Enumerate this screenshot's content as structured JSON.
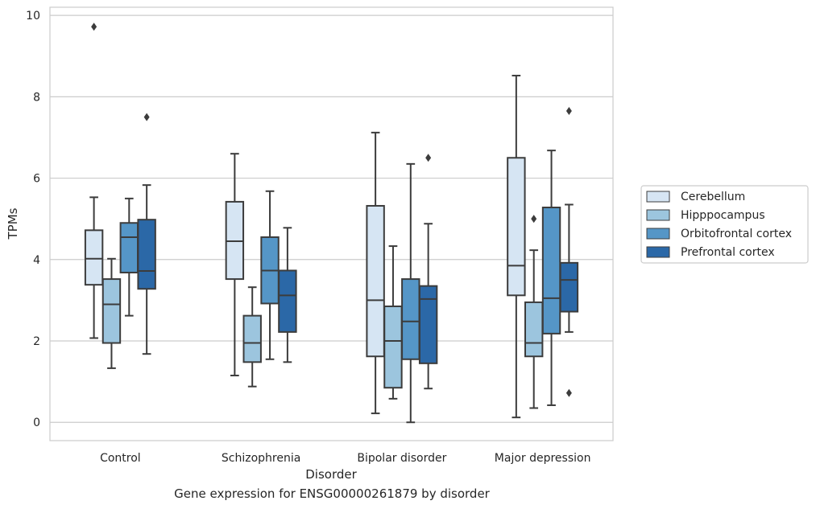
{
  "caption": "Gene expression for ENSG00000261879 by disorder",
  "chart_data": {
    "type": "boxplot",
    "xlabel": "Disorder",
    "ylabel": "TPMs",
    "ylim": [
      -0.45,
      10.2
    ],
    "yticks": [
      0,
      2,
      4,
      6,
      8,
      10
    ],
    "grid": "horizontal",
    "legend_position": "right",
    "categories": [
      "Control",
      "Schizophrenia",
      "Bipolar disorder",
      "Major depression"
    ],
    "series": [
      {
        "name": "Cerebellum",
        "color": "#d6e5f3",
        "boxes": [
          {
            "whislo": 2.07,
            "q1": 3.38,
            "med": 4.02,
            "q3": 4.72,
            "whishi": 5.53,
            "fliers": [
              9.72
            ]
          },
          {
            "whislo": 1.15,
            "q1": 3.52,
            "med": 4.45,
            "q3": 5.42,
            "whishi": 6.6,
            "fliers": []
          },
          {
            "whislo": 0.22,
            "q1": 1.62,
            "med": 3.0,
            "q3": 5.32,
            "whishi": 7.12,
            "fliers": []
          },
          {
            "whislo": 0.12,
            "q1": 3.12,
            "med": 3.85,
            "q3": 6.5,
            "whishi": 8.52,
            "fliers": []
          }
        ]
      },
      {
        "name": "Hipppocampus",
        "color": "#9cc5de",
        "boxes": [
          {
            "whislo": 1.33,
            "q1": 1.95,
            "med": 2.9,
            "q3": 3.52,
            "whishi": 4.02,
            "fliers": []
          },
          {
            "whislo": 0.88,
            "q1": 1.48,
            "med": 1.95,
            "q3": 2.62,
            "whishi": 3.32,
            "fliers": []
          },
          {
            "whislo": 0.58,
            "q1": 0.85,
            "med": 2.0,
            "q3": 2.85,
            "whishi": 4.33,
            "fliers": []
          },
          {
            "whislo": 0.35,
            "q1": 1.62,
            "med": 1.95,
            "q3": 2.95,
            "whishi": 4.23,
            "fliers": [
              5.0
            ]
          }
        ]
      },
      {
        "name": "Orbitofrontal cortex",
        "color": "#5596c7",
        "boxes": [
          {
            "whislo": 2.62,
            "q1": 3.68,
            "med": 4.55,
            "q3": 4.9,
            "whishi": 5.5,
            "fliers": []
          },
          {
            "whislo": 1.55,
            "q1": 2.92,
            "med": 3.73,
            "q3": 4.55,
            "whishi": 5.68,
            "fliers": []
          },
          {
            "whislo": 0.0,
            "q1": 1.55,
            "med": 2.48,
            "q3": 3.52,
            "whishi": 6.35,
            "fliers": []
          },
          {
            "whislo": 0.42,
            "q1": 2.18,
            "med": 3.05,
            "q3": 5.28,
            "whishi": 6.68,
            "fliers": []
          }
        ]
      },
      {
        "name": "Prefrontal cortex",
        "color": "#2b68a7",
        "boxes": [
          {
            "whislo": 1.68,
            "q1": 3.28,
            "med": 3.72,
            "q3": 4.98,
            "whishi": 5.83,
            "fliers": [
              7.5
            ]
          },
          {
            "whislo": 1.48,
            "q1": 2.22,
            "med": 3.12,
            "q3": 3.73,
            "whishi": 4.78,
            "fliers": []
          },
          {
            "whislo": 0.83,
            "q1": 1.45,
            "med": 3.03,
            "q3": 3.35,
            "whishi": 4.88,
            "fliers": [
              6.5
            ]
          },
          {
            "whislo": 2.22,
            "q1": 2.72,
            "med": 3.5,
            "q3": 3.92,
            "whishi": 5.35,
            "fliers": [
              7.65,
              0.72
            ]
          }
        ]
      }
    ]
  }
}
